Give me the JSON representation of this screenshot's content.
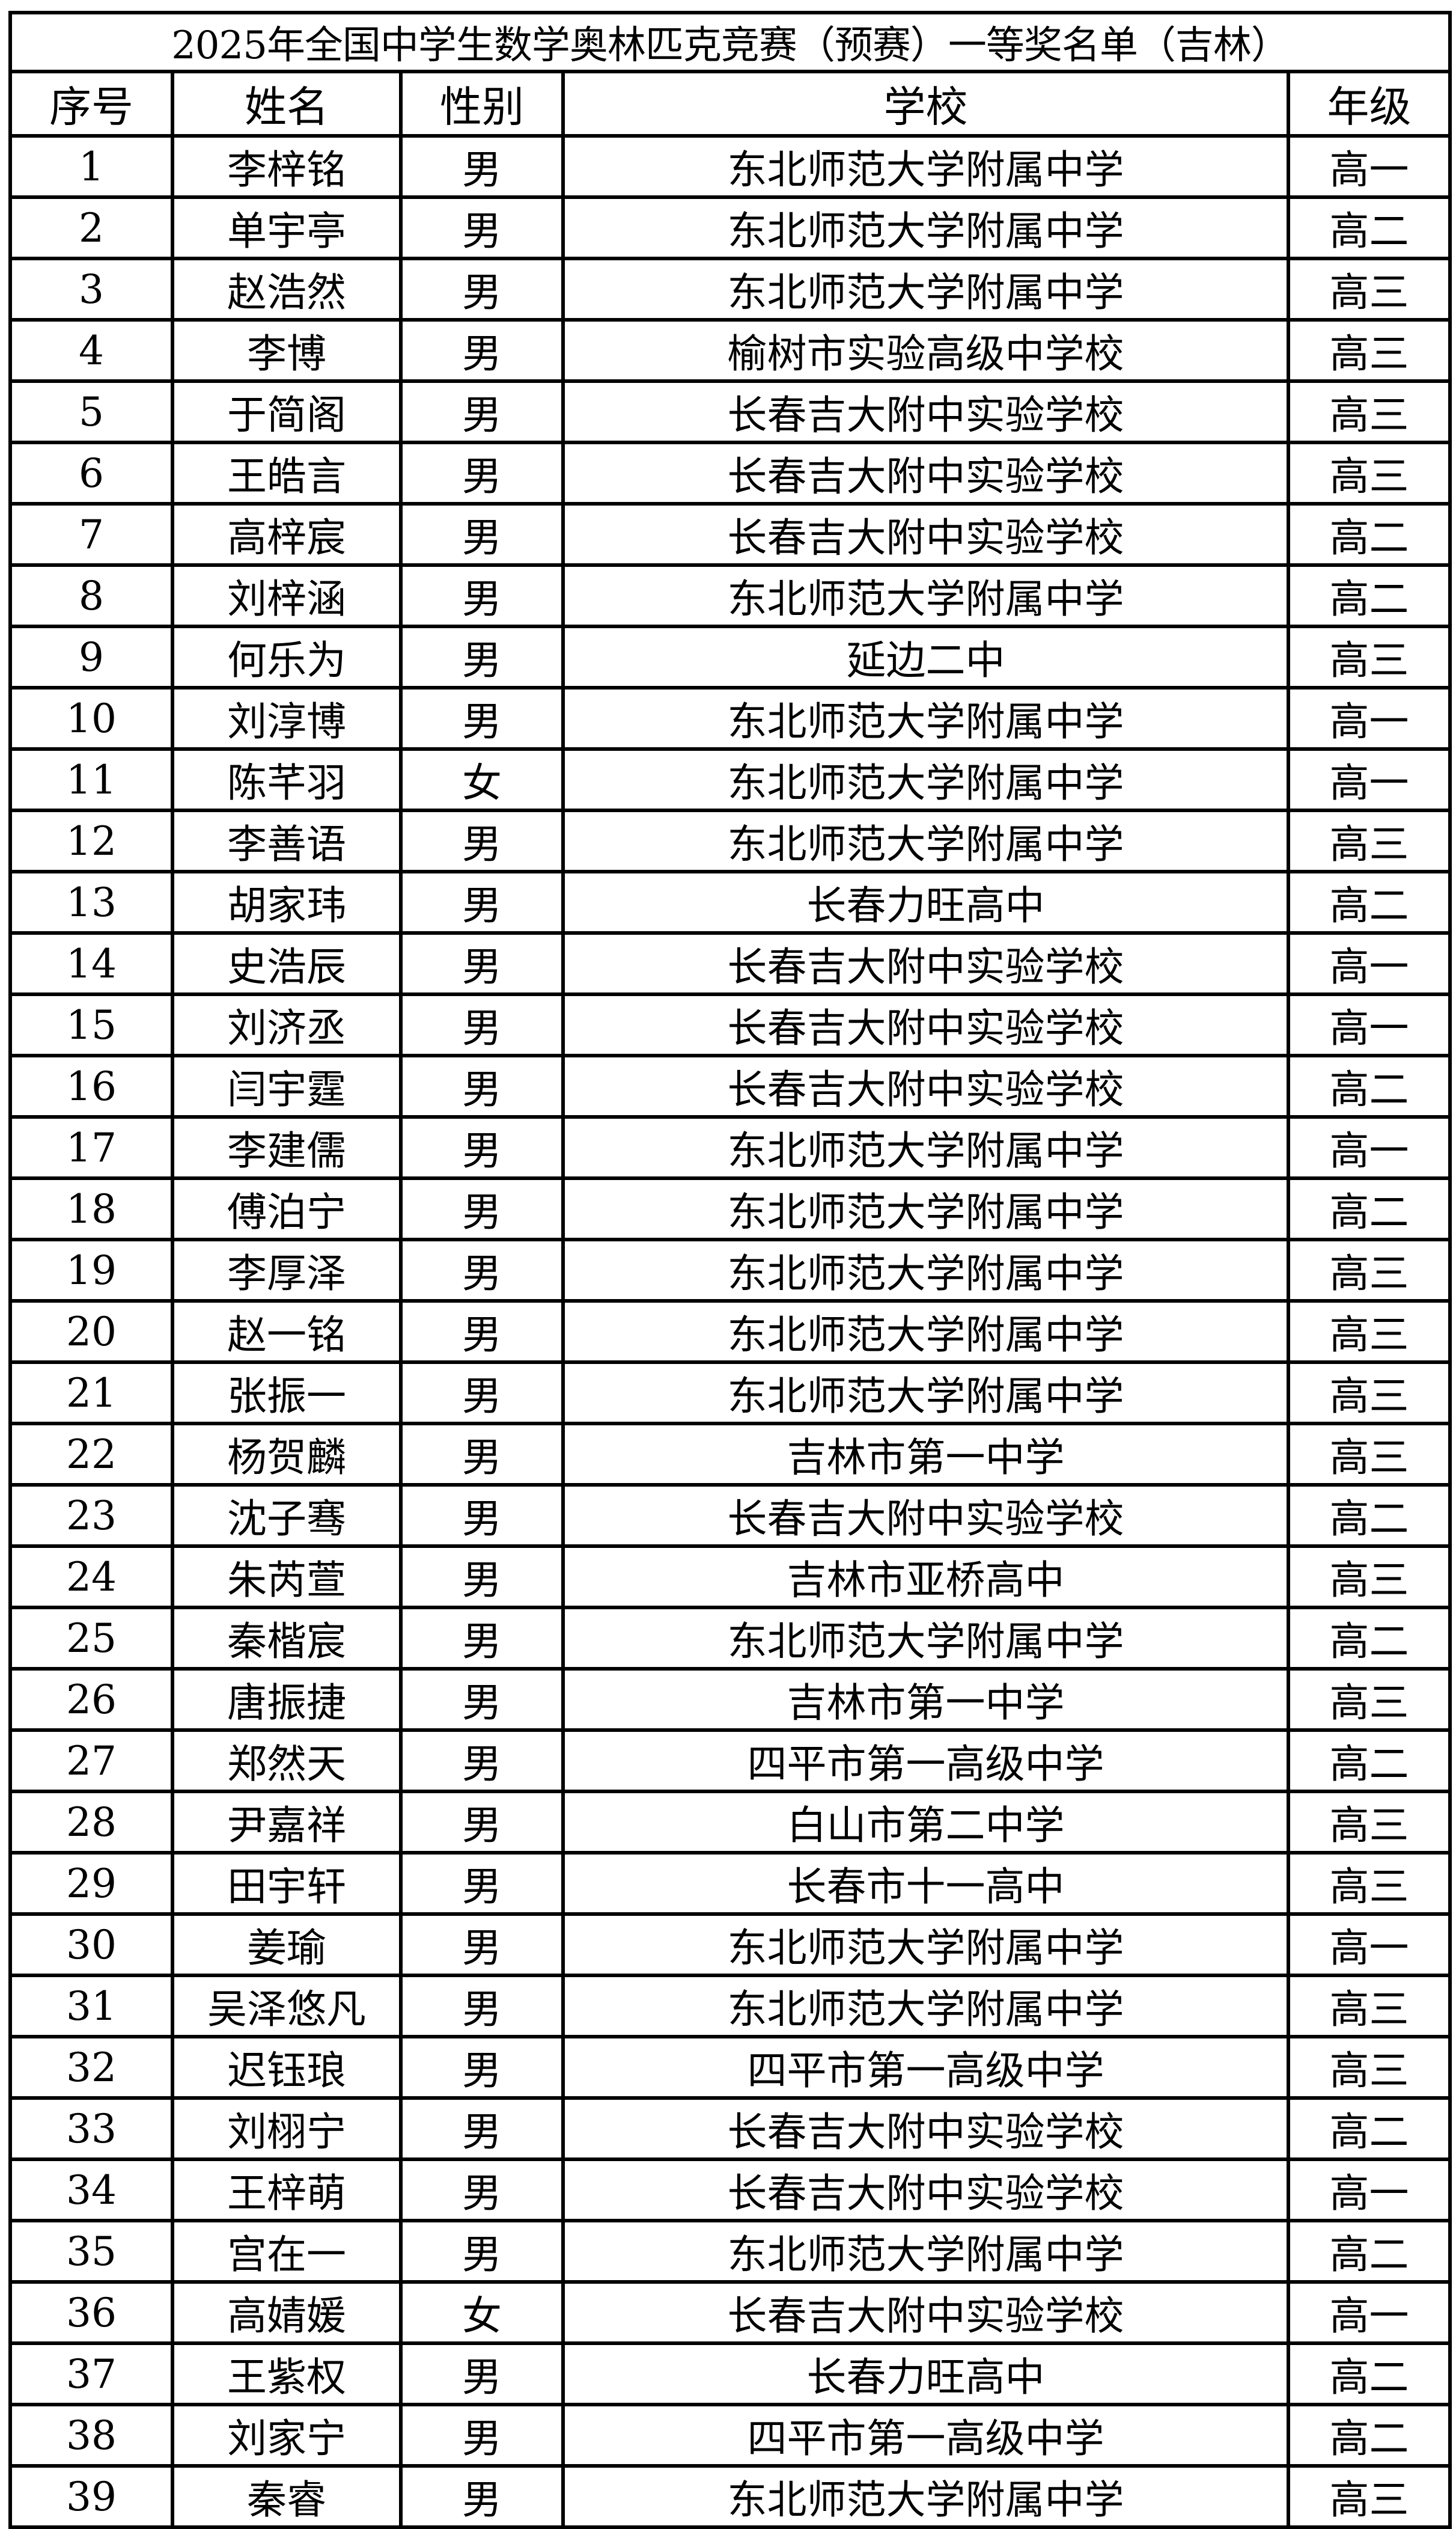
{
  "title": "2025年全国中学生数学奥林匹克竞赛（预赛）一等奖名单（吉林）",
  "columns": [
    "序号",
    "姓名",
    "性别",
    "学校",
    "年级"
  ],
  "rows": [
    [
      "1",
      "李梓铭",
      "男",
      "东北师范大学附属中学",
      "高一"
    ],
    [
      "2",
      "单宇亭",
      "男",
      "东北师范大学附属中学",
      "高二"
    ],
    [
      "3",
      "赵浩然",
      "男",
      "东北师范大学附属中学",
      "高三"
    ],
    [
      "4",
      "李博",
      "男",
      "榆树市实验高级中学校",
      "高三"
    ],
    [
      "5",
      "于简阁",
      "男",
      "长春吉大附中实验学校",
      "高三"
    ],
    [
      "6",
      "王皓言",
      "男",
      "长春吉大附中实验学校",
      "高三"
    ],
    [
      "7",
      "高梓宸",
      "男",
      "长春吉大附中实验学校",
      "高二"
    ],
    [
      "8",
      "刘梓涵",
      "男",
      "东北师范大学附属中学",
      "高二"
    ],
    [
      "9",
      "何乐为",
      "男",
      "延边二中",
      "高三"
    ],
    [
      "10",
      "刘淳博",
      "男",
      "东北师范大学附属中学",
      "高一"
    ],
    [
      "11",
      "陈芊羽",
      "女",
      "东北师范大学附属中学",
      "高一"
    ],
    [
      "12",
      "李善语",
      "男",
      "东北师范大学附属中学",
      "高三"
    ],
    [
      "13",
      "胡家玮",
      "男",
      "长春力旺高中",
      "高二"
    ],
    [
      "14",
      "史浩辰",
      "男",
      "长春吉大附中实验学校",
      "高一"
    ],
    [
      "15",
      "刘济丞",
      "男",
      "长春吉大附中实验学校",
      "高一"
    ],
    [
      "16",
      "闫宇霆",
      "男",
      "长春吉大附中实验学校",
      "高二"
    ],
    [
      "17",
      "李建儒",
      "男",
      "东北师范大学附属中学",
      "高一"
    ],
    [
      "18",
      "傅泊宁",
      "男",
      "东北师范大学附属中学",
      "高二"
    ],
    [
      "19",
      "李厚泽",
      "男",
      "东北师范大学附属中学",
      "高三"
    ],
    [
      "20",
      "赵一铭",
      "男",
      "东北师范大学附属中学",
      "高三"
    ],
    [
      "21",
      "张振一",
      "男",
      "东北师范大学附属中学",
      "高三"
    ],
    [
      "22",
      "杨贺麟",
      "男",
      "吉林市第一中学",
      "高三"
    ],
    [
      "23",
      "沈子骞",
      "男",
      "长春吉大附中实验学校",
      "高二"
    ],
    [
      "24",
      "朱芮萱",
      "男",
      "吉林市亚桥高中",
      "高三"
    ],
    [
      "25",
      "秦楷宸",
      "男",
      "东北师范大学附属中学",
      "高二"
    ],
    [
      "26",
      "唐振捷",
      "男",
      "吉林市第一中学",
      "高三"
    ],
    [
      "27",
      "郑然天",
      "男",
      "四平市第一高级中学",
      "高二"
    ],
    [
      "28",
      "尹嘉祥",
      "男",
      "白山市第二中学",
      "高三"
    ],
    [
      "29",
      "田宇轩",
      "男",
      "长春市十一高中",
      "高三"
    ],
    [
      "30",
      "姜瑜",
      "男",
      "东北师范大学附属中学",
      "高一"
    ],
    [
      "31",
      "吴泽悠凡",
      "男",
      "东北师范大学附属中学",
      "高三"
    ],
    [
      "32",
      "迟钰琅",
      "男",
      "四平市第一高级中学",
      "高三"
    ],
    [
      "33",
      "刘栩宁",
      "男",
      "长春吉大附中实验学校",
      "高二"
    ],
    [
      "34",
      "王梓萌",
      "男",
      "长春吉大附中实验学校",
      "高一"
    ],
    [
      "35",
      "宫在一",
      "男",
      "东北师范大学附属中学",
      "高二"
    ],
    [
      "36",
      "高婧媛",
      "女",
      "长春吉大附中实验学校",
      "高一"
    ],
    [
      "37",
      "王紫权",
      "男",
      "长春力旺高中",
      "高二"
    ],
    [
      "38",
      "刘家宁",
      "男",
      "四平市第一高级中学",
      "高二"
    ],
    [
      "39",
      "秦睿",
      "男",
      "东北师范大学附属中学",
      "高三"
    ]
  ]
}
